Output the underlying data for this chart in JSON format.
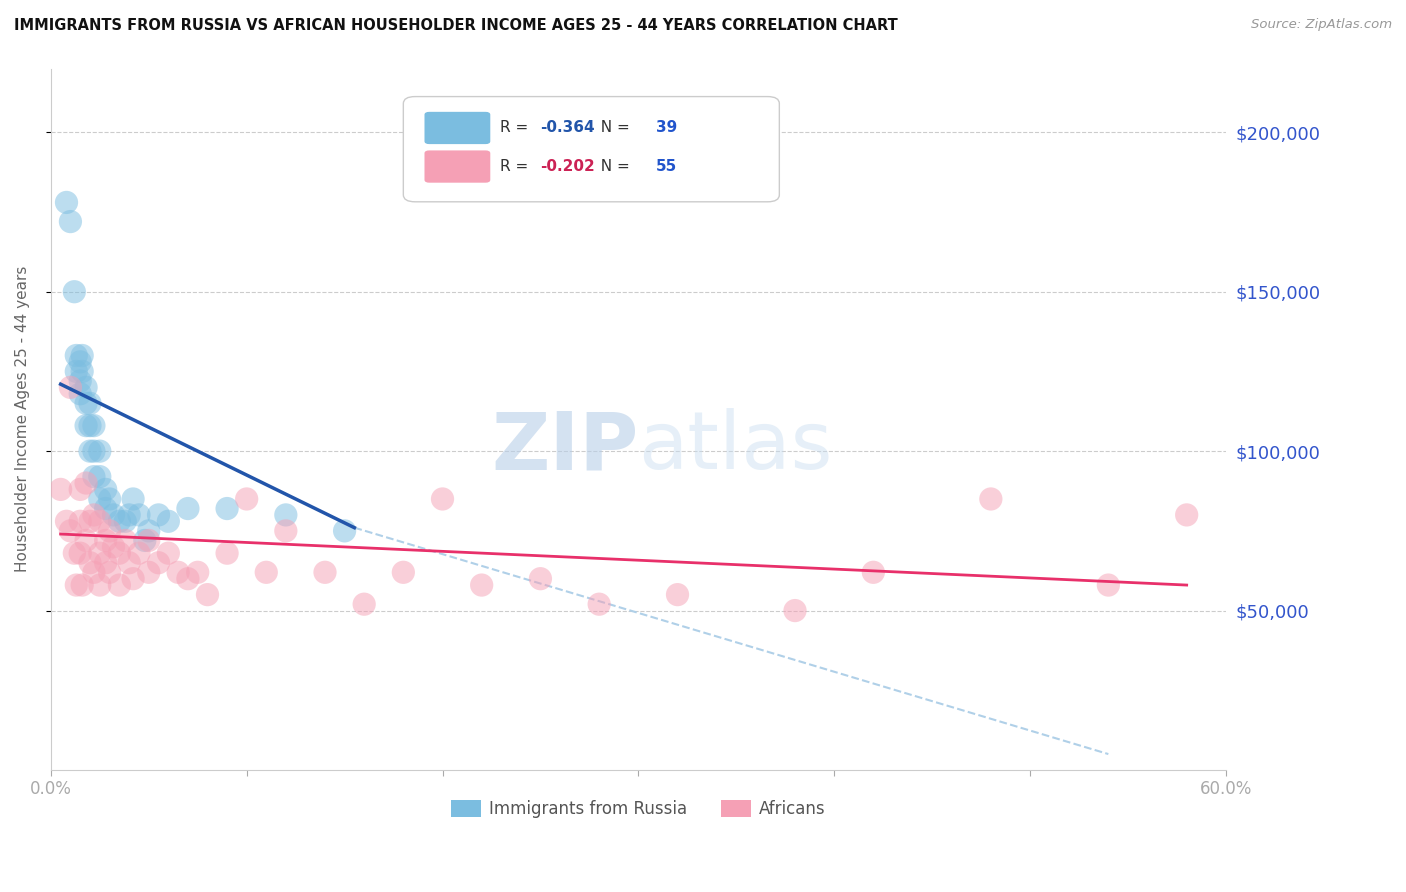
{
  "title": "IMMIGRANTS FROM RUSSIA VS AFRICAN HOUSEHOLDER INCOME AGES 25 - 44 YEARS CORRELATION CHART",
  "source": "Source: ZipAtlas.com",
  "ylabel": "Householder Income Ages 25 - 44 years",
  "ytick_labels": [
    "$50,000",
    "$100,000",
    "$150,000",
    "$200,000"
  ],
  "ytick_values": [
    50000,
    100000,
    150000,
    200000
  ],
  "ylim": [
    0,
    220000
  ],
  "xlim": [
    0.0,
    0.6
  ],
  "russia_R": -0.364,
  "russia_N": 39,
  "africa_R": -0.202,
  "africa_N": 55,
  "russia_color": "#7bbde0",
  "africa_color": "#f5a0b5",
  "trendline_russia_color": "#2255aa",
  "trendline_africa_color": "#e8306a",
  "trendline_dashed_color": "#b0d0e8",
  "legend_label_russia": "Immigrants from Russia",
  "legend_label_africa": "Africans",
  "watermark_zip": "ZIP",
  "watermark_atlas": "atlas",
  "russia_x": [
    0.008,
    0.01,
    0.012,
    0.013,
    0.013,
    0.015,
    0.015,
    0.015,
    0.016,
    0.016,
    0.018,
    0.018,
    0.018,
    0.02,
    0.02,
    0.02,
    0.022,
    0.022,
    0.022,
    0.025,
    0.025,
    0.025,
    0.028,
    0.028,
    0.03,
    0.032,
    0.035,
    0.038,
    0.04,
    0.042,
    0.045,
    0.048,
    0.05,
    0.055,
    0.06,
    0.07,
    0.09,
    0.12,
    0.15
  ],
  "russia_y": [
    178000,
    172000,
    150000,
    130000,
    125000,
    128000,
    122000,
    118000,
    130000,
    125000,
    120000,
    115000,
    108000,
    115000,
    108000,
    100000,
    108000,
    100000,
    92000,
    100000,
    92000,
    85000,
    88000,
    82000,
    85000,
    80000,
    78000,
    78000,
    80000,
    85000,
    80000,
    72000,
    75000,
    80000,
    78000,
    82000,
    82000,
    80000,
    75000
  ],
  "africa_x": [
    0.005,
    0.008,
    0.01,
    0.01,
    0.012,
    0.013,
    0.015,
    0.015,
    0.015,
    0.016,
    0.018,
    0.018,
    0.02,
    0.02,
    0.022,
    0.022,
    0.025,
    0.025,
    0.025,
    0.028,
    0.028,
    0.03,
    0.03,
    0.032,
    0.035,
    0.035,
    0.038,
    0.04,
    0.042,
    0.045,
    0.05,
    0.05,
    0.055,
    0.06,
    0.065,
    0.07,
    0.075,
    0.08,
    0.09,
    0.1,
    0.11,
    0.12,
    0.14,
    0.16,
    0.18,
    0.2,
    0.22,
    0.25,
    0.28,
    0.32,
    0.38,
    0.42,
    0.48,
    0.54,
    0.58
  ],
  "africa_y": [
    88000,
    78000,
    120000,
    75000,
    68000,
    58000,
    88000,
    78000,
    68000,
    58000,
    90000,
    72000,
    78000,
    65000,
    80000,
    62000,
    78000,
    68000,
    58000,
    72000,
    65000,
    75000,
    62000,
    70000,
    68000,
    58000,
    72000,
    65000,
    60000,
    68000,
    72000,
    62000,
    65000,
    68000,
    62000,
    60000,
    62000,
    55000,
    68000,
    85000,
    62000,
    75000,
    62000,
    52000,
    62000,
    85000,
    58000,
    60000,
    52000,
    55000,
    50000,
    62000,
    85000,
    58000,
    80000
  ],
  "russia_trend_x": [
    0.005,
    0.155
  ],
  "russia_trend_y": [
    121000,
    76000
  ],
  "africa_trend_x": [
    0.005,
    0.58
  ],
  "africa_trend_y": [
    74000,
    58000
  ],
  "dashed_trend_x": [
    0.155,
    0.54
  ],
  "dashed_trend_y": [
    76000,
    5000
  ]
}
